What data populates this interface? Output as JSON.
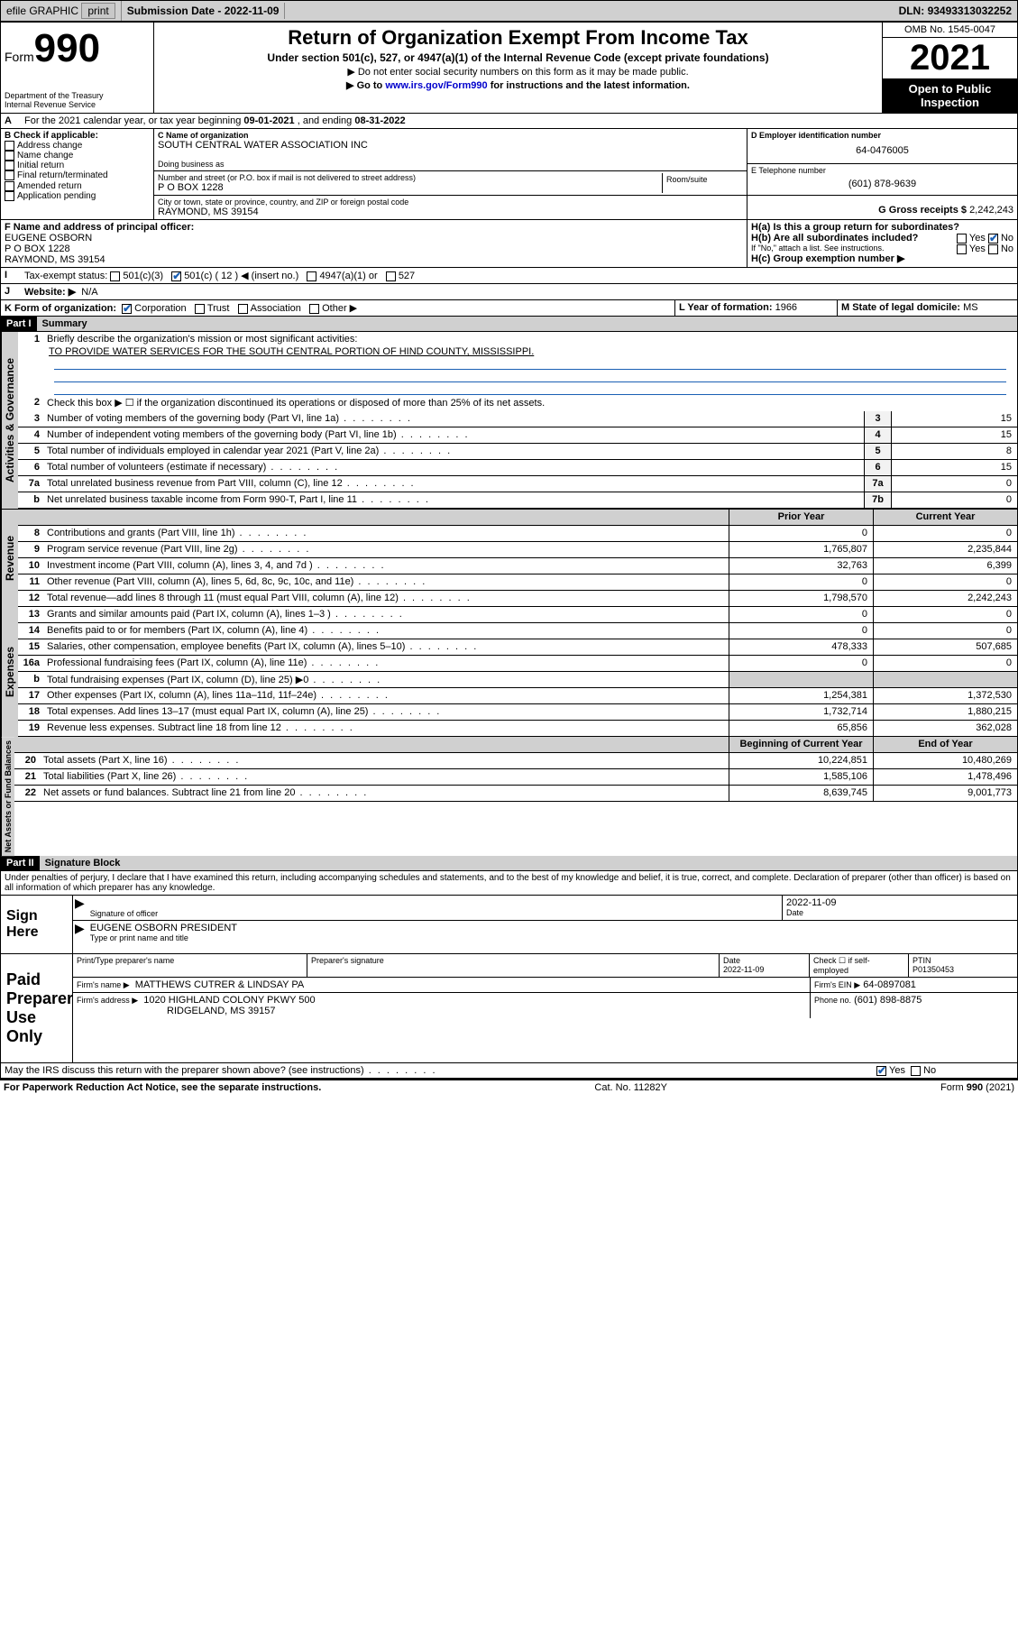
{
  "topbar": {
    "efile": "efile GRAPHIC",
    "print": "print",
    "subdate_label": "Submission Date - ",
    "subdate": "2022-11-09",
    "dln_label": "DLN: ",
    "dln": "93493313032252"
  },
  "header": {
    "form_word": "Form",
    "form_num": "990",
    "dept": "Department of the Treasury",
    "irs": "Internal Revenue Service",
    "title": "Return of Organization Exempt From Income Tax",
    "sub": "Under section 501(c), 527, or 4947(a)(1) of the Internal Revenue Code (except private foundations)",
    "note1": "▶ Do not enter social security numbers on this form as it may be made public.",
    "note2_pre": "▶ Go to ",
    "note2_link": "www.irs.gov/Form990",
    "note2_post": " for instructions and the latest information.",
    "omb": "OMB No. 1545-0047",
    "year": "2021",
    "inspect1": "Open to Public",
    "inspect2": "Inspection"
  },
  "periodA": {
    "label_pre": "For the 2021 calendar year, or tax year beginning ",
    "begin": "09-01-2021",
    "mid": " , and ending ",
    "end": "08-31-2022"
  },
  "boxB": {
    "label": "B Check if applicable:",
    "opts": [
      "Address change",
      "Name change",
      "Initial return",
      "Final return/terminated",
      "Amended return",
      "Application pending"
    ]
  },
  "boxC": {
    "name_label": "C Name of organization",
    "name": "SOUTH CENTRAL WATER ASSOCIATION INC",
    "dba": "Doing business as",
    "street_label": "Number and street (or P.O. box if mail is not delivered to street address)",
    "room_label": "Room/suite",
    "street": "P O BOX 1228",
    "city_label": "City or town, state or province, country, and ZIP or foreign postal code",
    "city": "RAYMOND, MS  39154"
  },
  "boxD": {
    "label": "D Employer identification number",
    "val": "64-0476005"
  },
  "boxE": {
    "label": "E Telephone number",
    "val": "(601) 878-9639"
  },
  "boxG": {
    "label": "G Gross receipts $",
    "val": "2,242,243"
  },
  "boxF": {
    "label": "F Name and address of principal officer:",
    "line1": "EUGENE OSBORN",
    "line2": "P O BOX 1228",
    "line3": "RAYMOND, MS  39154"
  },
  "boxH": {
    "a_label": "H(a)  Is this a group return for subordinates?",
    "b_label": "H(b)  Are all subordinates included?",
    "b_note": "If \"No,\" attach a list. See instructions.",
    "c_label": "H(c)  Group exemption number ▶"
  },
  "boxI": {
    "label": "Tax-exempt status:",
    "c12_insert": "( 12 ) ◀ (insert no.)"
  },
  "boxJ": {
    "label": "Website: ▶",
    "val": "N/A"
  },
  "boxK": {
    "label": "K Form of organization:",
    "other": "Other ▶"
  },
  "boxL": {
    "label": "L Year of formation:",
    "val": "1966"
  },
  "boxM": {
    "label": "M State of legal domicile:",
    "val": "MS"
  },
  "part1": {
    "hdr": "Part I",
    "title": "Summary",
    "l1_label": "Briefly describe the organization's mission or most significant activities:",
    "l1_text": "TO PROVIDE WATER SERVICES FOR THE SOUTH CENTRAL PORTION OF HIND COUNTY, MISSISSIPPI.",
    "l2": "Check this box ▶ ☐  if the organization discontinued its operations or disposed of more than 25% of its net assets.",
    "lines_gov": [
      {
        "n": "3",
        "label": "Number of voting members of the governing body (Part VI, line 1a)",
        "box": "3",
        "val": "15"
      },
      {
        "n": "4",
        "label": "Number of independent voting members of the governing body (Part VI, line 1b)",
        "box": "4",
        "val": "15"
      },
      {
        "n": "5",
        "label": "Total number of individuals employed in calendar year 2021 (Part V, line 2a)",
        "box": "5",
        "val": "8"
      },
      {
        "n": "6",
        "label": "Total number of volunteers (estimate if necessary)",
        "box": "6",
        "val": "15"
      },
      {
        "n": "7a",
        "label": "Total unrelated business revenue from Part VIII, column (C), line 12",
        "box": "7a",
        "val": "0"
      },
      {
        "n": "b",
        "label": "Net unrelated business taxable income from Form 990-T, Part I, line 11",
        "box": "7b",
        "val": "0"
      }
    ],
    "col_prior": "Prior Year",
    "col_curr": "Current Year",
    "rev": [
      {
        "n": "8",
        "label": "Contributions and grants (Part VIII, line 1h)",
        "p": "0",
        "c": "0"
      },
      {
        "n": "9",
        "label": "Program service revenue (Part VIII, line 2g)",
        "p": "1,765,807",
        "c": "2,235,844"
      },
      {
        "n": "10",
        "label": "Investment income (Part VIII, column (A), lines 3, 4, and 7d )",
        "p": "32,763",
        "c": "6,399"
      },
      {
        "n": "11",
        "label": "Other revenue (Part VIII, column (A), lines 5, 6d, 8c, 9c, 10c, and 11e)",
        "p": "0",
        "c": "0"
      },
      {
        "n": "12",
        "label": "Total revenue—add lines 8 through 11 (must equal Part VIII, column (A), line 12)",
        "p": "1,798,570",
        "c": "2,242,243"
      }
    ],
    "exp": [
      {
        "n": "13",
        "label": "Grants and similar amounts paid (Part IX, column (A), lines 1–3 )",
        "p": "0",
        "c": "0"
      },
      {
        "n": "14",
        "label": "Benefits paid to or for members (Part IX, column (A), line 4)",
        "p": "0",
        "c": "0"
      },
      {
        "n": "15",
        "label": "Salaries, other compensation, employee benefits (Part IX, column (A), lines 5–10)",
        "p": "478,333",
        "c": "507,685"
      },
      {
        "n": "16a",
        "label": "Professional fundraising fees (Part IX, column (A), line 11e)",
        "p": "0",
        "c": "0"
      },
      {
        "n": "b",
        "label": "Total fundraising expenses (Part IX, column (D), line 25) ▶0",
        "p": "",
        "c": "",
        "shade": true
      },
      {
        "n": "17",
        "label": "Other expenses (Part IX, column (A), lines 11a–11d, 11f–24e)",
        "p": "1,254,381",
        "c": "1,372,530"
      },
      {
        "n": "18",
        "label": "Total expenses. Add lines 13–17 (must equal Part IX, column (A), line 25)",
        "p": "1,732,714",
        "c": "1,880,215"
      },
      {
        "n": "19",
        "label": "Revenue less expenses. Subtract line 18 from line 12",
        "p": "65,856",
        "c": "362,028"
      }
    ],
    "col_begin": "Beginning of Current Year",
    "col_end": "End of Year",
    "net": [
      {
        "n": "20",
        "label": "Total assets (Part X, line 16)",
        "p": "10,224,851",
        "c": "10,480,269"
      },
      {
        "n": "21",
        "label": "Total liabilities (Part X, line 26)",
        "p": "1,585,106",
        "c": "1,478,496"
      },
      {
        "n": "22",
        "label": "Net assets or fund balances. Subtract line 21 from line 20",
        "p": "8,639,745",
        "c": "9,001,773"
      }
    ]
  },
  "part2": {
    "hdr": "Part II",
    "title": "Signature Block",
    "decl": "Under penalties of perjury, I declare that I have examined this return, including accompanying schedules and statements, and to the best of my knowledge and belief, it is true, correct, and complete. Declaration of preparer (other than officer) is based on all information of which preparer has any knowledge."
  },
  "sign": {
    "block": "Sign Here",
    "sig_label": "Signature of officer",
    "date_label": "Date",
    "date": "2022-11-09",
    "name": "EUGENE OSBORN  PRESIDENT",
    "name_label": "Type or print name and title"
  },
  "paid": {
    "block": "Paid Preparer Use Only",
    "col_name": "Print/Type preparer's name",
    "col_sig": "Preparer's signature",
    "col_date": "Date",
    "date": "2022-11-09",
    "check_label": "Check ☐ if self-employed",
    "ptin_label": "PTIN",
    "ptin": "P01350453",
    "firm_name_label": "Firm's name    ▶",
    "firm_name": "MATTHEWS CUTRER & LINDSAY PA",
    "firm_ein_label": "Firm's EIN ▶",
    "firm_ein": "64-0897081",
    "firm_addr_label": "Firm's address ▶",
    "firm_addr1": "1020 HIGHLAND COLONY PKWY 500",
    "firm_addr2": "RIDGELAND, MS  39157",
    "phone_label": "Phone no.",
    "phone": "(601) 898-8875"
  },
  "bottom": {
    "discuss": "May the IRS discuss this return with the preparer shown above? (see instructions)",
    "pra": "For Paperwork Reduction Act Notice, see the separate instructions.",
    "cat": "Cat. No. 11282Y",
    "formref": "Form 990 (2021)"
  },
  "labels": {
    "yes": "Yes",
    "no": "No",
    "c3": "501(c)(3)",
    "c": "501(c)",
    "c4947": "4947(a)(1) or",
    "c527": "527",
    "corp": "Corporation",
    "trust": "Trust",
    "assoc": "Association"
  },
  "vtabs": {
    "gov": "Activities & Governance",
    "rev": "Revenue",
    "exp": "Expenses",
    "net": "Net Assets or Fund Balances"
  }
}
